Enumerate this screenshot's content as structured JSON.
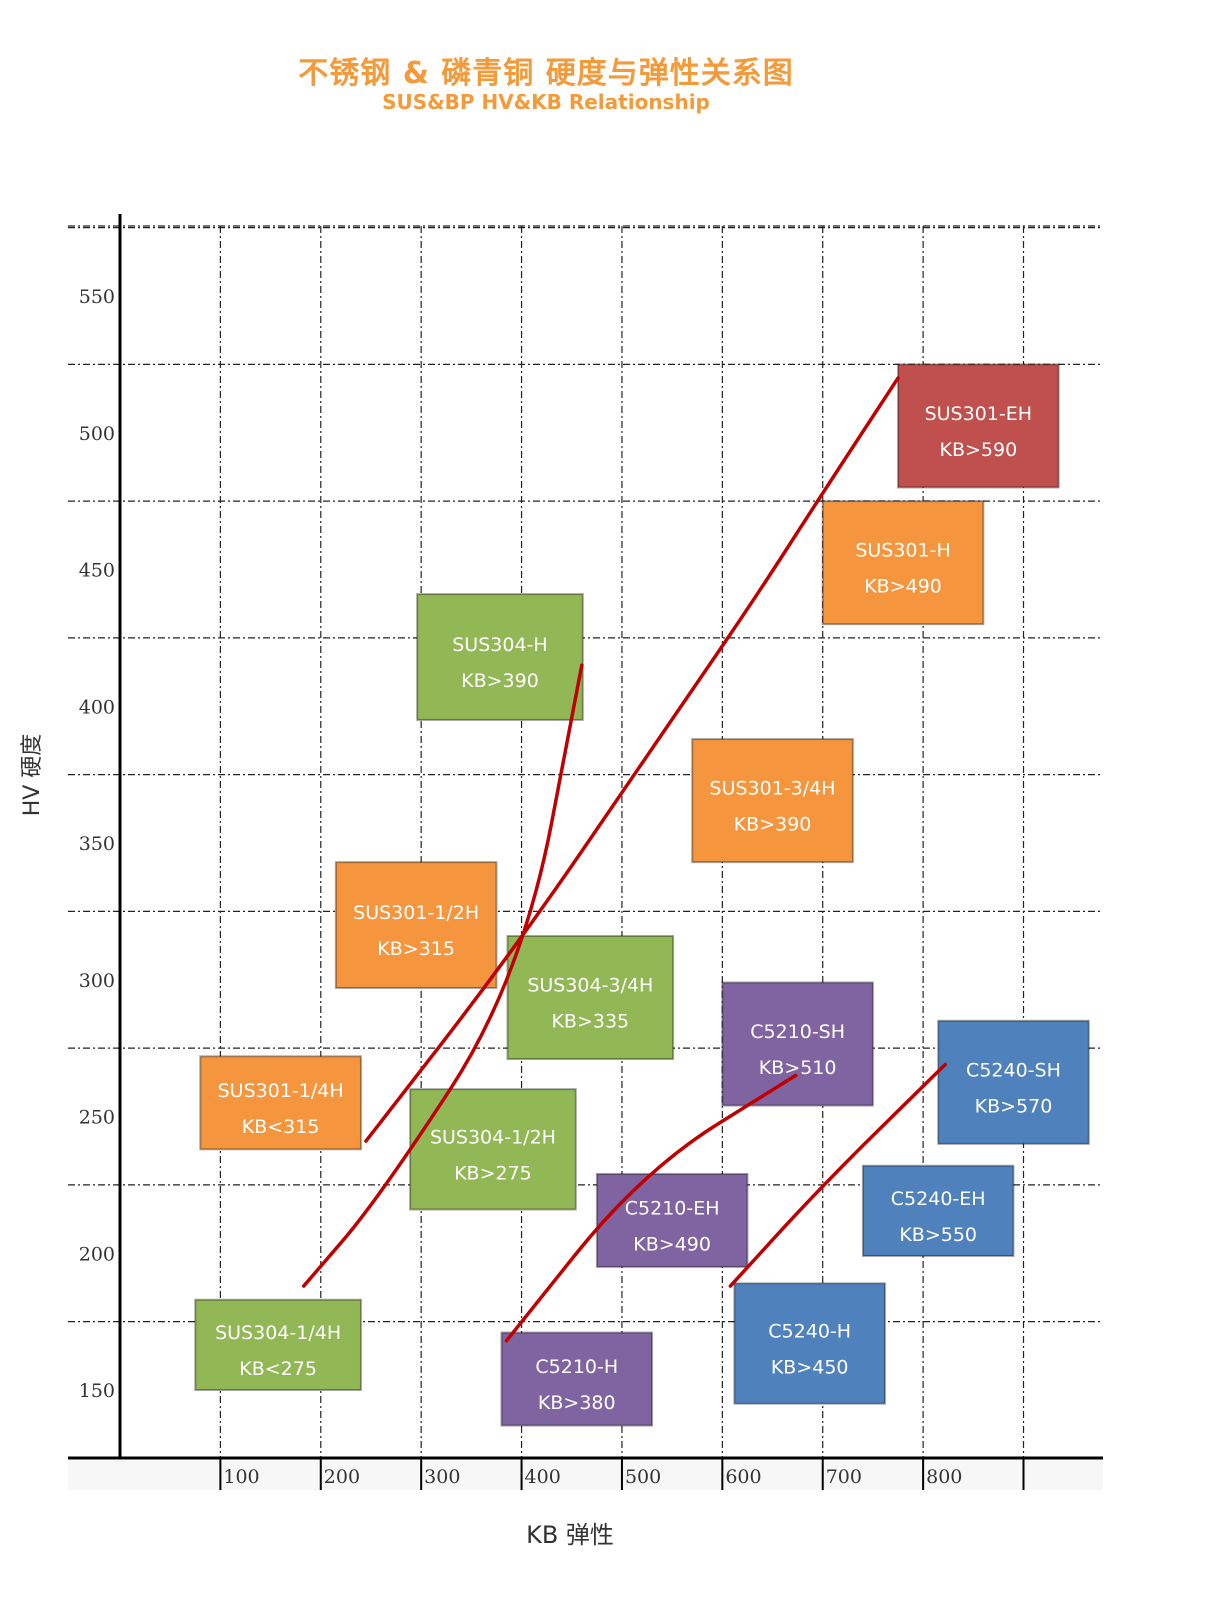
{
  "chart_data": {
    "type": "scatter",
    "title": "不锈钢 & 磷青铜 硬度与弹性关系图",
    "subtitle": "SUS&BP HV&KB Relationship",
    "xlabel": "KB 弹性",
    "ylabel": "HV 硬度",
    "xlim": [
      0,
      975
    ],
    "ylim": [
      125,
      565
    ],
    "x_ticks": [
      100,
      200,
      300,
      400,
      500,
      600,
      700,
      800
    ],
    "y_ticks": [
      150,
      200,
      250,
      300,
      350,
      400,
      450,
      500,
      550
    ],
    "grid": true,
    "colors": {
      "green": "#92b755",
      "orange": "#f5963f",
      "red": "#c0504d",
      "purple": "#8064a2",
      "blue": "#4f81bd",
      "trend": "#c00000"
    },
    "boxes": [
      {
        "name": "SUS301-EH",
        "kb": "KB>590",
        "color": "red",
        "x": [
          775,
          935
        ],
        "y": [
          480,
          525
        ]
      },
      {
        "name": "SUS301-H",
        "kb": "KB>490",
        "color": "orange",
        "x": [
          700,
          860
        ],
        "y": [
          430,
          475
        ]
      },
      {
        "name": "SUS304-H",
        "kb": "KB>390",
        "color": "green",
        "x": [
          296,
          461
        ],
        "y": [
          395,
          441
        ]
      },
      {
        "name": "SUS301-3/4H",
        "kb": "KB>390",
        "color": "orange",
        "x": [
          570,
          730
        ],
        "y": [
          343,
          388
        ]
      },
      {
        "name": "SUS301-1/2H",
        "kb": "KB>315",
        "color": "orange",
        "x": [
          215,
          375
        ],
        "y": [
          297,
          343
        ]
      },
      {
        "name": "SUS304-3/4H",
        "kb": "KB>335",
        "color": "green",
        "x": [
          386,
          551
        ],
        "y": [
          271,
          316
        ]
      },
      {
        "name": "C5210-SH",
        "kb": "KB>510",
        "color": "purple",
        "x": [
          600,
          750
        ],
        "y": [
          254,
          299
        ]
      },
      {
        "name": "C5240-SH",
        "kb": "KB>570",
        "color": "blue",
        "x": [
          815,
          965
        ],
        "y": [
          240,
          285
        ]
      },
      {
        "name": "SUS301-1/4H",
        "kb": "KB<315",
        "color": "orange",
        "x": [
          80,
          240
        ],
        "y": [
          238,
          272
        ]
      },
      {
        "name": "SUS304-1/2H",
        "kb": "KB>275",
        "color": "green",
        "x": [
          289,
          454
        ],
        "y": [
          216,
          260
        ]
      },
      {
        "name": "C5210-EH",
        "kb": "KB>490",
        "color": "purple",
        "x": [
          475,
          625
        ],
        "y": [
          195,
          229
        ]
      },
      {
        "name": "C5240-EH",
        "kb": "KB>550",
        "color": "blue",
        "x": [
          740,
          890
        ],
        "y": [
          199,
          232
        ]
      },
      {
        "name": "SUS304-1/4H",
        "kb": "KB<275",
        "color": "green",
        "x": [
          75,
          240
        ],
        "y": [
          150,
          183
        ]
      },
      {
        "name": "C5240-H",
        "kb": "KB>450",
        "color": "blue",
        "x": [
          612,
          762
        ],
        "y": [
          145,
          189
        ]
      },
      {
        "name": "C5210-H",
        "kb": "KB>380",
        "color": "purple",
        "x": [
          380,
          530
        ],
        "y": [
          137,
          171
        ]
      }
    ],
    "trend_lines": [
      {
        "points": [
          [
            183,
            188
          ],
          [
            258,
            220
          ],
          [
            400,
            300
          ],
          [
            460,
            415
          ]
        ]
      },
      {
        "points": [
          [
            245,
            241
          ],
          [
            395,
            312
          ],
          [
            540,
            390
          ],
          [
            630,
            438
          ],
          [
            700,
            478
          ],
          [
            775,
            520
          ]
        ]
      },
      {
        "points": [
          [
            385,
            168
          ],
          [
            520,
            230
          ],
          [
            673,
            265
          ]
        ]
      },
      {
        "points": [
          [
            608,
            188
          ],
          [
            700,
            225
          ],
          [
            822,
            269
          ]
        ]
      }
    ]
  }
}
